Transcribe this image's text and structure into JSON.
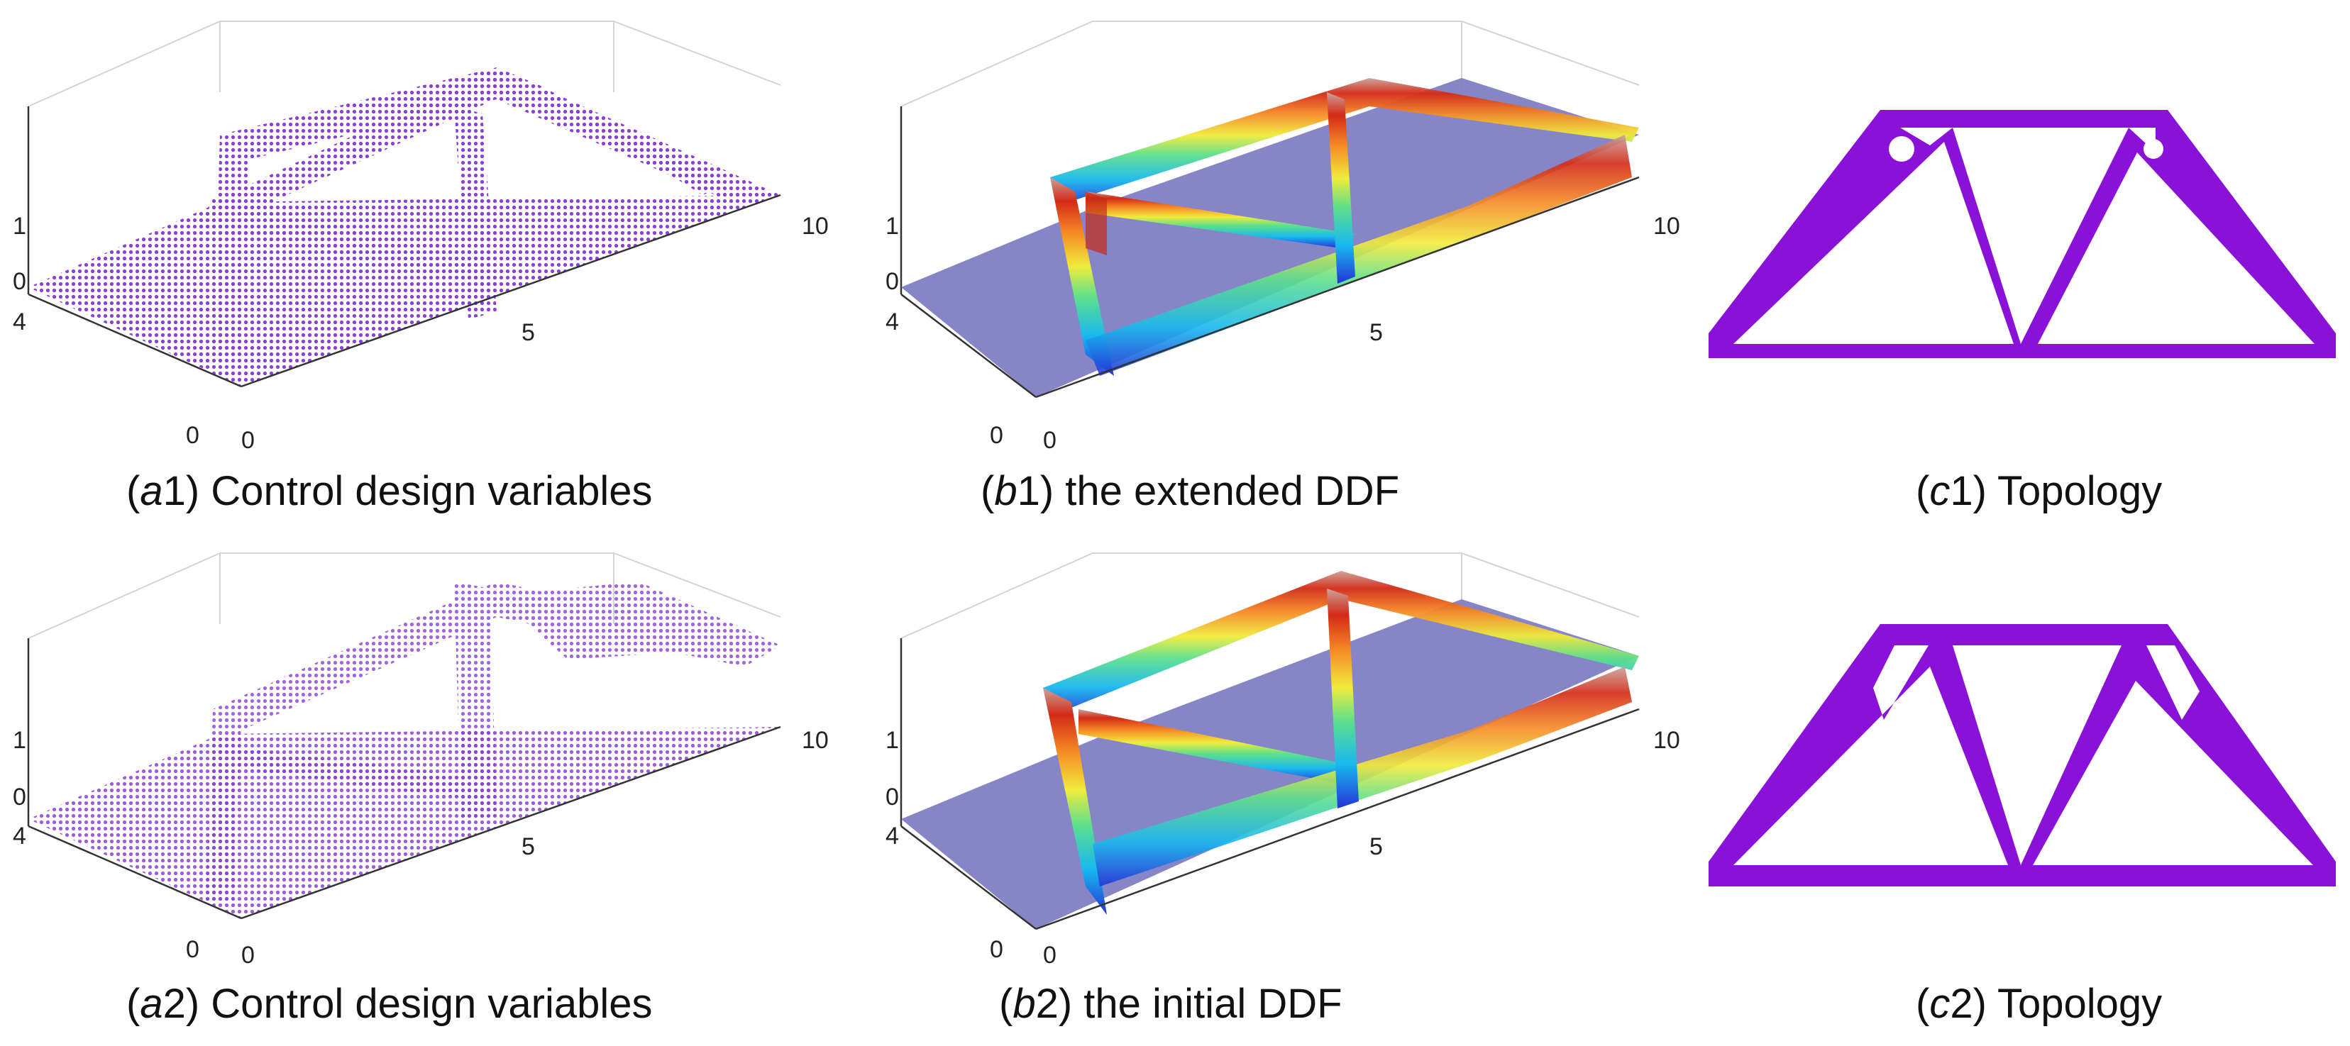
{
  "panels": [
    {
      "id": "a1",
      "kind": "scatter3d",
      "caption_letter": "a",
      "caption_number": "1",
      "caption_text": "Control design variables",
      "ticks": {
        "z_top": "1",
        "z_bottom": "0",
        "y_far": "4",
        "y_near": "0",
        "x_origin": "0",
        "x_mid": "5",
        "x_end": "10"
      },
      "color": "#8a3fd6"
    },
    {
      "id": "b1",
      "kind": "surface3d",
      "caption_letter": "b",
      "caption_number": "1",
      "caption_text": "the extended DDF",
      "ticks": {
        "z_top": "1",
        "z_bottom": "0",
        "y_far": "4",
        "y_near": "0",
        "x_origin": "0",
        "x_mid": "5",
        "x_end": "10"
      }
    },
    {
      "id": "c1",
      "kind": "topology",
      "caption_letter": "c",
      "caption_number": "1",
      "caption_text": "Topology",
      "color": "#8a12d8"
    },
    {
      "id": "a2",
      "kind": "scatter3d",
      "caption_letter": "a",
      "caption_number": "2",
      "caption_text": "Control design variables",
      "ticks": {
        "z_top": "1",
        "z_bottom": "0",
        "y_far": "4",
        "y_near": "0",
        "x_origin": "0",
        "x_mid": "5",
        "x_end": "10"
      },
      "color": "#8a3fd6"
    },
    {
      "id": "b2",
      "kind": "surface3d",
      "caption_letter": "b",
      "caption_number": "2",
      "caption_text": "the initial DDF",
      "ticks": {
        "z_top": "1",
        "z_bottom": "0",
        "y_far": "4",
        "y_near": "0",
        "x_origin": "0",
        "x_mid": "5",
        "x_end": "10"
      }
    },
    {
      "id": "c2",
      "kind": "topology",
      "caption_letter": "c",
      "caption_number": "2",
      "caption_text": "Topology",
      "color": "#8a12d8"
    }
  ],
  "colors": {
    "plane": "#7f80c4",
    "purple": "#8a12d8",
    "dots": "#8a3fd6"
  }
}
